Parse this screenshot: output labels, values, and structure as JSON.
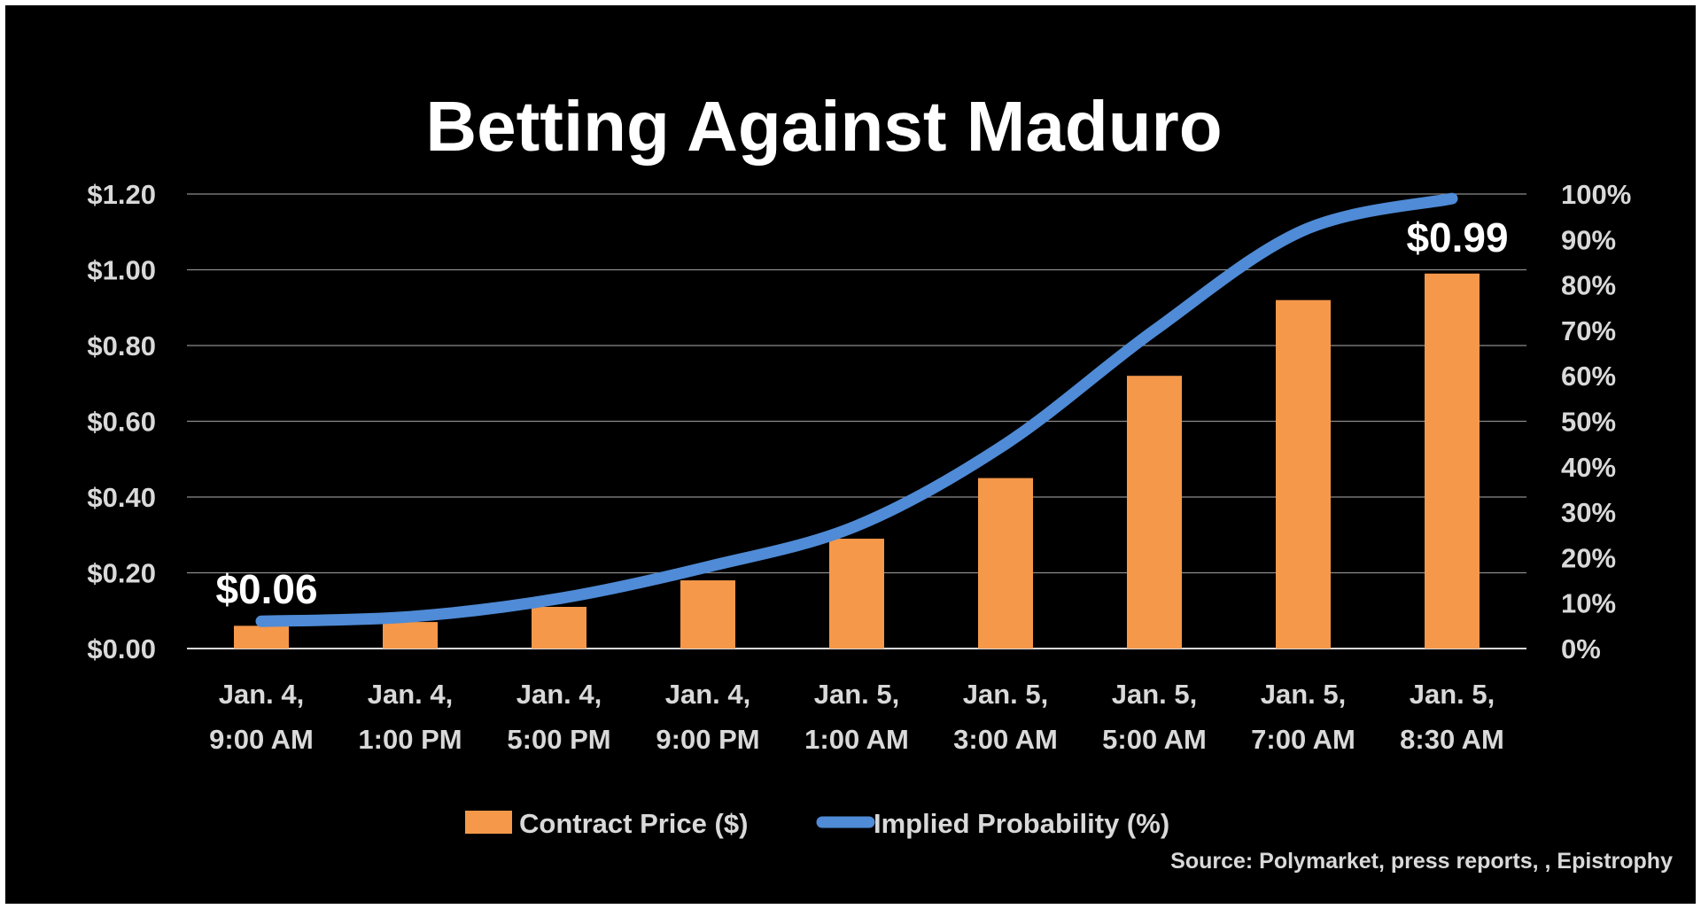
{
  "chart_data": {
    "type": "bar",
    "title": "Betting Against Maduro",
    "categories": [
      [
        "Jan. 4,",
        "9:00 AM"
      ],
      [
        "Jan. 4,",
        "1:00 PM"
      ],
      [
        "Jan. 4,",
        "5:00 PM"
      ],
      [
        "Jan. 4,",
        "9:00 PM"
      ],
      [
        "Jan. 5,",
        "1:00 AM"
      ],
      [
        "Jan. 5,",
        "3:00 AM"
      ],
      [
        "Jan. 5,",
        "5:00 AM"
      ],
      [
        "Jan. 5,",
        "7:00 AM"
      ],
      [
        "Jan. 5,",
        "8:30 AM"
      ]
    ],
    "series": [
      {
        "name": "Contract Price ($)",
        "type": "bar",
        "axis": "left",
        "color": "#f5984a",
        "values": [
          0.06,
          0.07,
          0.11,
          0.18,
          0.29,
          0.45,
          0.72,
          0.92,
          0.99
        ]
      },
      {
        "name": "Implied Probability (%)",
        "type": "line",
        "axis": "right",
        "color": "#4f8bd6",
        "smooth": true,
        "values": [
          6,
          7,
          11,
          18,
          27,
          45,
          70,
          92,
          99
        ]
      }
    ],
    "y_left": {
      "ylim": [
        0,
        1.2
      ],
      "ticks": [
        "$0.00",
        "$0.20",
        "$0.40",
        "$0.60",
        "$0.80",
        "$1.00",
        "$1.20"
      ]
    },
    "y_right": {
      "ylim": [
        0,
        100
      ],
      "ticks": [
        "0%",
        "10%",
        "20%",
        "30%",
        "40%",
        "50%",
        "60%",
        "70%",
        "80%",
        "90%",
        "100%"
      ]
    },
    "data_labels": [
      {
        "category_index": 0,
        "text": "$0.06"
      },
      {
        "category_index": 8,
        "text": "$0.99"
      }
    ],
    "grid": true,
    "legend": "bottom-center",
    "source": "Source: Polymarket, press reports, , Epistrophy",
    "colors": {
      "background": "#000000",
      "text": "#d9d9d9",
      "title": "#ffffff",
      "gridline": "#8c8c8c"
    }
  }
}
